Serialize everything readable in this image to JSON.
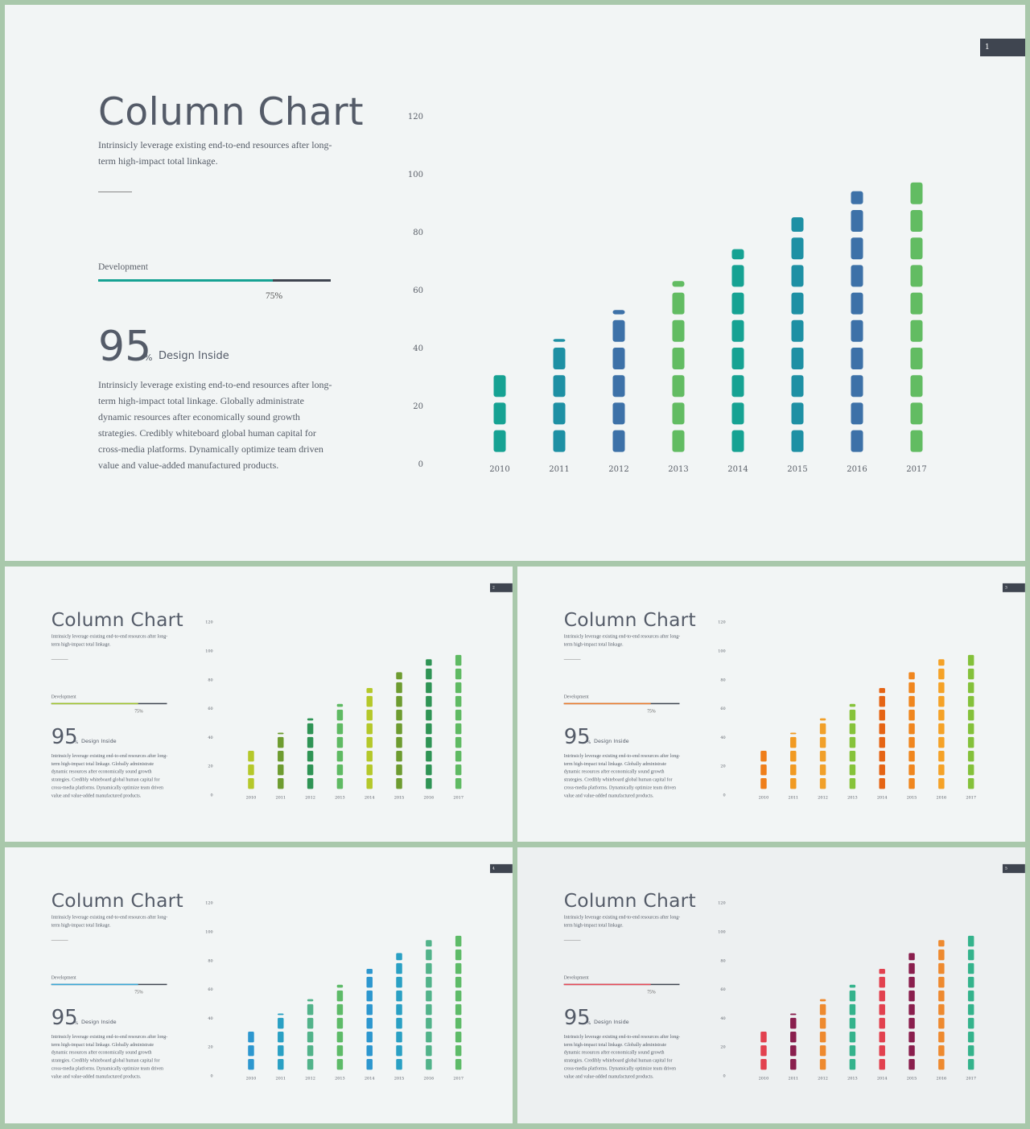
{
  "slides": [
    {
      "number": "1",
      "title": "Column Chart",
      "subtitle": "Intrinsicly leverage existing end-to-end resources after long-term high-impact total linkage.",
      "progress": {
        "label": "Development",
        "value": 0.75,
        "value_label": "75%",
        "fill_color": "#16a293"
      },
      "stat": {
        "value": "95",
        "unit": "%",
        "caption": "Design Inside"
      },
      "body": "Intrinsicly leverage existing end-to-end resources after long-term high-impact total linkage. Globally administrate dynamic resources after economically sound growth strategies. Credibly whiteboard global human capital for cross-media platforms. Dynamically optimize team driven value and value-added manufactured products.",
      "colors": [
        "#16a293",
        "#1e90a4",
        "#3d71a8",
        "#62bc62",
        "#16a293",
        "#1e90a4",
        "#3d71a8",
        "#62bc62"
      ]
    },
    {
      "number": "2",
      "title": "Column Chart",
      "subtitle": "Intrinsicly leverage existing end-to-end resources after long-term high-impact total linkage.",
      "progress": {
        "label": "Development",
        "value": 0.75,
        "value_label": "75%",
        "fill_color": "#a3c72d"
      },
      "stat": {
        "value": "95",
        "unit": "%",
        "caption": "Design Inside"
      },
      "body": "Intrinsicly leverage existing end-to-end resources after long-term high-impact total linkage. Globally administrate dynamic resources after economically sound growth strategies. Credibly whiteboard global human capital for cross-media platforms. Dynamically optimize team driven value and value-added manufactured products.",
      "colors": [
        "#b5c82a",
        "#6e9c30",
        "#2f9455",
        "#5fba63",
        "#b5c82a",
        "#6e9c30",
        "#2f9455",
        "#5fba63"
      ]
    },
    {
      "number": "3",
      "title": "Column Chart",
      "subtitle": "Intrinsicly leverage existing end-to-end resources after long-term high-impact total linkage.",
      "progress": {
        "label": "Development",
        "value": 0.75,
        "value_label": "75%",
        "fill_color": "#ee7d2c"
      },
      "stat": {
        "value": "95",
        "unit": "%",
        "caption": "Design Inside"
      },
      "body": "Intrinsicly leverage existing end-to-end resources after long-term high-impact total linkage. Globally administrate dynamic resources after economically sound growth strategies. Credibly whiteboard global human capital for cross-media platforms. Dynamically optimize team driven value and value-added manufactured products.",
      "colors": [
        "#ef7e1a",
        "#f19a22",
        "#f1a02a",
        "#86c33a",
        "#e56414",
        "#f0861e",
        "#f5a227",
        "#84c13a"
      ]
    },
    {
      "number": "4",
      "title": "Column Chart",
      "subtitle": "Intrinsicly leverage existing end-to-end resources after long-term high-impact total linkage.",
      "progress": {
        "label": "Development",
        "value": 0.75,
        "value_label": "75%",
        "fill_color": "#3aa8d8"
      },
      "stat": {
        "value": "95",
        "unit": "%",
        "caption": "Design Inside"
      },
      "body": "Intrinsicly leverage existing end-to-end resources after long-term high-impact total linkage. Globally administrate dynamic resources after economically sound growth strategies. Credibly whiteboard global human capital for cross-media platforms. Dynamically optimize team driven value and value-added manufactured products.",
      "colors": [
        "#2d97cf",
        "#2aa0c4",
        "#52b38a",
        "#5ebb68",
        "#2d97cf",
        "#2aa0c4",
        "#52b38a",
        "#5ebb68"
      ]
    },
    {
      "number": "5",
      "title": "Column Chart",
      "subtitle": "Intrinsicly leverage existing end-to-end resources after long-term high-impact total linkage.",
      "progress": {
        "label": "Development",
        "value": 0.75,
        "value_label": "75%",
        "fill_color": "#e84856"
      },
      "stat": {
        "value": "95",
        "unit": "%",
        "caption": "Design Inside"
      },
      "body": "Intrinsicly leverage existing end-to-end resources after long-term high-impact total linkage. Globally administrate dynamic resources after economically sound growth strategies. Credibly whiteboard global human capital for cross-media platforms. Dynamically optimize team driven value and value-added manufactured products.",
      "colors": [
        "#e2414f",
        "#8a1f4e",
        "#ee8a2f",
        "#34b38c",
        "#e2414f",
        "#8a1f4e",
        "#ee8a2f",
        "#34b38c"
      ]
    }
  ],
  "chart_data": {
    "type": "bar",
    "categories": [
      "2010",
      "2011",
      "2012",
      "2013",
      "2014",
      "2015",
      "2016",
      "2017"
    ],
    "values": [
      32,
      43,
      53,
      63,
      74,
      85,
      94,
      98
    ],
    "ylim": [
      0,
      120
    ],
    "yticks": [
      "0",
      "20",
      "40",
      "60",
      "80",
      "100",
      "120"
    ],
    "segment_step": 9.5,
    "grid": false,
    "legend": "none"
  }
}
